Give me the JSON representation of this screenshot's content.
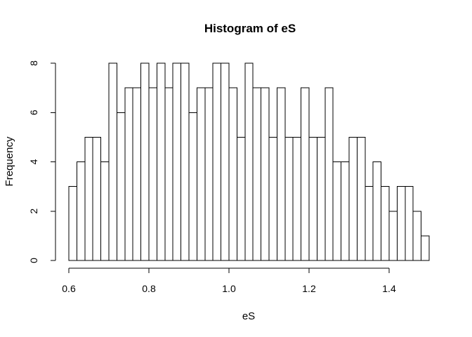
{
  "chart_data": {
    "type": "bar",
    "title": "Histogram of eS",
    "xlabel": "eS",
    "ylabel": "Frequency",
    "bin_width": 0.02,
    "bins_start": 0.6,
    "bins_end": 1.5,
    "xlim": [
      0.6,
      1.5
    ],
    "ylim": [
      0,
      8
    ],
    "x_ticks": [
      0.6,
      0.8,
      1.0,
      1.2,
      1.4
    ],
    "x_tick_labels": [
      "0.6",
      "0.8",
      "1.0",
      "1.2",
      "1.4"
    ],
    "y_ticks": [
      0,
      2,
      4,
      6,
      8
    ],
    "y_tick_labels": [
      "0",
      "2",
      "4",
      "6",
      "8"
    ],
    "values": [
      3,
      4,
      5,
      5,
      4,
      8,
      6,
      7,
      7,
      8,
      7,
      8,
      7,
      8,
      8,
      6,
      7,
      7,
      8,
      8,
      7,
      5,
      8,
      7,
      7,
      5,
      7,
      5,
      5,
      7,
      5,
      5,
      7,
      4,
      4,
      5,
      5,
      3,
      4,
      3,
      2,
      3,
      3,
      2,
      1
    ],
    "grid": false,
    "colors": {
      "bar_fill": "#ffffff",
      "bar_stroke": "#000000",
      "text": "#000000"
    }
  }
}
